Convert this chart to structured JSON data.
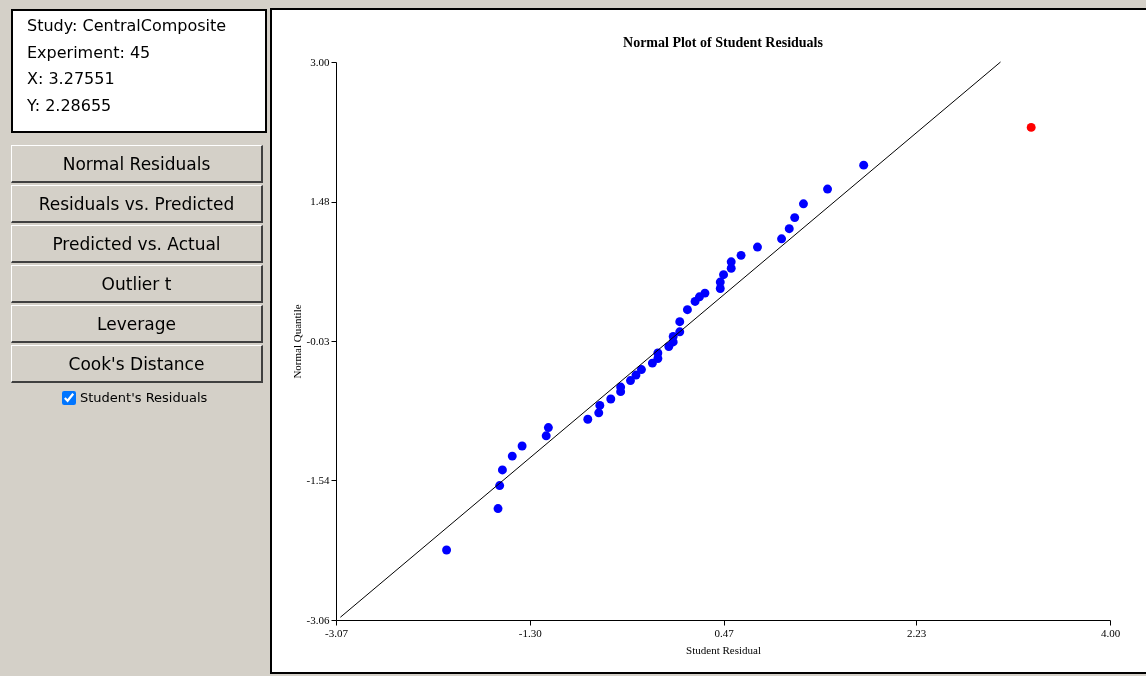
{
  "chart_data": {
    "type": "scatter",
    "title": "Normal Plot of Student Residuals",
    "xlabel": "Student Residual",
    "ylabel": "Normal Quantile",
    "xlim": [
      -3.07,
      4.0
    ],
    "xticks": [
      {
        "value": -3.07,
        "label": "-3.07"
      },
      {
        "value": -1.3,
        "label": "-1.30"
      },
      {
        "value": 0.47,
        "label": "0.47"
      },
      {
        "value": 2.23,
        "label": "2.23"
      },
      {
        "value": 4,
        "label": "4.00"
      }
    ],
    "ylim": [
      -3.06,
      3.0
    ],
    "yticks": [
      {
        "value": -3.06,
        "label": "-3.06"
      },
      {
        "value": -1.54,
        "label": "-1.54"
      },
      {
        "value": -0.03,
        "label": "-0.03"
      },
      {
        "value": 1.48,
        "label": "1.48"
      },
      {
        "value": 3,
        "label": "3.00"
      }
    ],
    "grid": false,
    "series": [
      {
        "marker": "circle",
        "color": "#0000ff",
        "x": [
          -2.06,
          -1.59,
          -1.575,
          -1.55,
          -1.46,
          -1.37,
          -1.15,
          -1.13,
          -0.77,
          -0.67,
          -0.66,
          -0.56,
          -0.47,
          -0.47,
          -0.38,
          -0.33,
          -0.28,
          -0.18,
          -0.13,
          -0.13,
          -0.03,
          0.01,
          0.01,
          0.07,
          0.07,
          0.14,
          0.21,
          0.25,
          0.3,
          0.44,
          0.44,
          0.47,
          0.54,
          0.54,
          0.63,
          0.78,
          1.0,
          1.07,
          1.12,
          1.2,
          1.42,
          1.75
        ],
        "values": [
          -2.3,
          -1.85,
          -1.6,
          -1.43,
          -1.28,
          -1.17,
          -1.06,
          -0.97,
          -0.88,
          -0.81,
          -0.73,
          -0.66,
          -0.58,
          -0.53,
          -0.46,
          -0.4,
          -0.34,
          -0.27,
          -0.22,
          -0.16,
          -0.09,
          -0.04,
          0.02,
          0.07,
          0.18,
          0.31,
          0.4,
          0.45,
          0.49,
          0.54,
          0.61,
          0.69,
          0.76,
          0.83,
          0.9,
          0.99,
          1.08,
          1.19,
          1.31,
          1.46,
          1.62,
          1.88
        ]
      },
      {
        "marker": "circle",
        "color": "#ff0000",
        "x": [
          3.28
        ],
        "values": [
          2.29
        ]
      },
      {
        "type": "line",
        "color": "#000000",
        "x": [
          -3.03,
          3.0
        ],
        "values": [
          -3.03,
          3.0
        ]
      }
    ],
    "annotations": [
      "Study: CentralComposite",
      "Experiment: 45",
      "X: 3.27551",
      "Y: 2.28655",
      "Normal Residuals",
      "Residuals vs. Predicted",
      "Predicted vs. Actual",
      "Outlier t",
      "Leverage",
      "Cook's Distance",
      "Student's Residuals"
    ]
  }
}
